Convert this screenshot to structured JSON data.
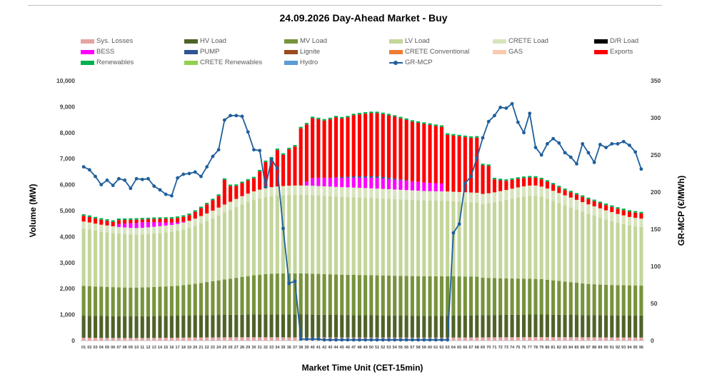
{
  "chart_data": {
    "type": "bar",
    "title": "24.09.2026  Day-Ahead Market - Buy",
    "xlabel": "Market Time Unit (CET-15min)",
    "ylabel": "Volume (MW)",
    "y2label": "GR-MCP (€/MWh)",
    "ylim": [
      0,
      10000
    ],
    "y2lim": [
      0,
      350
    ],
    "y_ticks": [
      "0",
      "1,000",
      "2,000",
      "3,000",
      "4,000",
      "5,000",
      "6,000",
      "7,000",
      "8,000",
      "9,000",
      "10,000"
    ],
    "y2_ticks": [
      "0",
      "50",
      "100",
      "150",
      "200",
      "250",
      "300",
      "350"
    ],
    "categories": [
      "01",
      "02",
      "03",
      "04",
      "05",
      "06",
      "07",
      "08",
      "09",
      "10",
      "11",
      "12",
      "13",
      "14",
      "15",
      "16",
      "17",
      "18",
      "19",
      "20",
      "21",
      "22",
      "23",
      "24",
      "25",
      "26",
      "27",
      "28",
      "29",
      "30",
      "31",
      "32",
      "33",
      "34",
      "35",
      "36",
      "37",
      "38",
      "39",
      "40",
      "41",
      "42",
      "43",
      "44",
      "45",
      "46",
      "47",
      "48",
      "49",
      "50",
      "51",
      "52",
      "53",
      "54",
      "55",
      "56",
      "57",
      "58",
      "59",
      "60",
      "61",
      "62",
      "63",
      "64",
      "65",
      "66",
      "67",
      "68",
      "69",
      "70",
      "71",
      "72",
      "73",
      "74",
      "75",
      "76",
      "77",
      "78",
      "79",
      "80",
      "81",
      "82",
      "83",
      "84",
      "85",
      "86",
      "87",
      "88",
      "89",
      "90",
      "91",
      "92",
      "93",
      "94",
      "95",
      "96"
    ],
    "legend": [
      {
        "name": "Sys. Losses",
        "color": "#e6a3a3"
      },
      {
        "name": "HV Load",
        "color": "#4f6228"
      },
      {
        "name": "MV Load",
        "color": "#77933c"
      },
      {
        "name": "LV Load",
        "color": "#c3d69b"
      },
      {
        "name": "CRETE Load",
        "color": "#d7e4bd"
      },
      {
        "name": "D/R Load",
        "color": "#000000"
      },
      {
        "name": "BESS",
        "color": "#ff00ff"
      },
      {
        "name": "PUMP",
        "color": "#2f5597"
      },
      {
        "name": "Lignite",
        "color": "#9c4a1e"
      },
      {
        "name": "CRETE Conventional",
        "color": "#ed7d31"
      },
      {
        "name": "GAS",
        "color": "#f8cbad"
      },
      {
        "name": "Exports",
        "color": "#ff0000"
      },
      {
        "name": "Renewables",
        "color": "#00b050"
      },
      {
        "name": "CRETE Renewables",
        "color": "#92d050"
      },
      {
        "name": "Hydro",
        "color": "#5b9bd5"
      },
      {
        "name": "GR-MCP",
        "color": "#1f5f9b",
        "kind": "line"
      }
    ],
    "series": [
      {
        "name": "Sys. Losses",
        "color": "#e6a3a3",
        "values": [
          110,
          108,
          106,
          104,
          103,
          102,
          101,
          100,
          100,
          100,
          101,
          102,
          104,
          106,
          108,
          110,
          112,
          115,
          118,
          120,
          122,
          123,
          124,
          125,
          125,
          126,
          127,
          127,
          128,
          128,
          128,
          128,
          128,
          127,
          126,
          125,
          124,
          123,
          122,
          121,
          120,
          120,
          119,
          119,
          118,
          118,
          118,
          117,
          117,
          117,
          117,
          116,
          116,
          116,
          115,
          115,
          115,
          115,
          115,
          115,
          115,
          116,
          117,
          118,
          119,
          120,
          121,
          122,
          124,
          125,
          126,
          127,
          128,
          129,
          130,
          131,
          132,
          133,
          133,
          133,
          132,
          131,
          130,
          129,
          128,
          127,
          126,
          125,
          124,
          123,
          122,
          121,
          120,
          119,
          118,
          117
        ]
      },
      {
        "name": "HV Load",
        "color": "#4f6228",
        "values": [
          850,
          848,
          846,
          844,
          842,
          840,
          838,
          836,
          835,
          835,
          836,
          838,
          840,
          842,
          844,
          846,
          848,
          850,
          852,
          854,
          856,
          858,
          860,
          862,
          864,
          866,
          868,
          870,
          872,
          874,
          876,
          878,
          880,
          882,
          882,
          882,
          882,
          880,
          880,
          878,
          876,
          874,
          872,
          870,
          868,
          866,
          864,
          862,
          860,
          858,
          856,
          854,
          852,
          850,
          848,
          846,
          844,
          842,
          840,
          840,
          840,
          840,
          842,
          844,
          846,
          848,
          850,
          852,
          854,
          856,
          858,
          860,
          862,
          864,
          866,
          868,
          870,
          870,
          870,
          868,
          866,
          864,
          862,
          860,
          858,
          856,
          854,
          852,
          850,
          850,
          850,
          850,
          850,
          850,
          850,
          850
        ]
      },
      {
        "name": "MV Load",
        "color": "#77933c",
        "values": [
          1150,
          1140,
          1130,
          1125,
          1120,
          1115,
          1110,
          1108,
          1105,
          1105,
          1108,
          1112,
          1118,
          1125,
          1132,
          1140,
          1150,
          1165,
          1185,
          1210,
          1240,
          1270,
          1300,
          1330,
          1360,
          1390,
          1420,
          1450,
          1480,
          1510,
          1530,
          1550,
          1560,
          1570,
          1575,
          1578,
          1580,
          1580,
          1578,
          1575,
          1570,
          1565,
          1560,
          1555,
          1550,
          1548,
          1546,
          1544,
          1542,
          1540,
          1538,
          1536,
          1534,
          1530,
          1528,
          1526,
          1524,
          1522,
          1520,
          1520,
          1520,
          1520,
          1515,
          1510,
          1505,
          1500,
          1495,
          1490,
          1440,
          1430,
          1420,
          1410,
          1400,
          1395,
          1390,
          1385,
          1380,
          1370,
          1360,
          1340,
          1320,
          1300,
          1280,
          1260,
          1240,
          1220,
          1200,
          1190,
          1180,
          1170,
          1165,
          1160,
          1160,
          1155,
          1155,
          1150
        ]
      },
      {
        "name": "LV Load",
        "color": "#c3d69b",
        "values": [
          2200,
          2180,
          2150,
          2120,
          2100,
          2080,
          2060,
          2050,
          2040,
          2035,
          2040,
          2050,
          2060,
          2070,
          2080,
          2090,
          2110,
          2140,
          2180,
          2230,
          2290,
          2350,
          2420,
          2500,
          2580,
          2650,
          2720,
          2790,
          2850,
          2900,
          2940,
          2970,
          2990,
          3000,
          3010,
          3015,
          3018,
          3020,
          3020,
          3015,
          3010,
          3005,
          3000,
          2995,
          2990,
          2985,
          2980,
          2975,
          2970,
          2965,
          2960,
          2955,
          2950,
          2945,
          2940,
          2935,
          2930,
          2925,
          2920,
          2915,
          2910,
          2905,
          2900,
          2890,
          2880,
          2870,
          2860,
          2850,
          2850,
          2880,
          2920,
          2970,
          3020,
          3070,
          3120,
          3160,
          3190,
          3200,
          3170,
          3120,
          3060,
          3000,
          2940,
          2880,
          2820,
          2760,
          2700,
          2640,
          2580,
          2520,
          2460,
          2400,
          2350,
          2300,
          2270,
          2250
        ]
      },
      {
        "name": "CRETE Load",
        "color": "#d7e4bd",
        "values": [
          270,
          270,
          268,
          266,
          264,
          262,
          260,
          258,
          256,
          255,
          255,
          256,
          258,
          260,
          262,
          265,
          268,
          272,
          276,
          280,
          285,
          290,
          295,
          300,
          305,
          310,
          315,
          320,
          325,
          330,
          335,
          340,
          345,
          350,
          355,
          360,
          362,
          364,
          366,
          368,
          370,
          372,
          374,
          376,
          378,
          380,
          380,
          380,
          380,
          380,
          378,
          376,
          374,
          372,
          370,
          368,
          366,
          364,
          362,
          360,
          360,
          362,
          364,
          366,
          368,
          370,
          372,
          374,
          376,
          378,
          380,
          382,
          384,
          386,
          388,
          390,
          392,
          394,
          392,
          390,
          386,
          382,
          378,
          374,
          370,
          366,
          362,
          358,
          354,
          350,
          346,
          342,
          338,
          334,
          330,
          326
        ]
      },
      {
        "name": "BESS",
        "color": "#ff00ff",
        "values": [
          0,
          0,
          0,
          0,
          0,
          0,
          120,
          150,
          180,
          200,
          220,
          200,
          180,
          150,
          120,
          90,
          60,
          30,
          0,
          0,
          0,
          0,
          0,
          0,
          0,
          0,
          0,
          0,
          0,
          0,
          0,
          0,
          0,
          0,
          0,
          0,
          0,
          0,
          150,
          300,
          320,
          330,
          340,
          350,
          360,
          370,
          380,
          390,
          400,
          410,
          410,
          400,
          390,
          380,
          370,
          360,
          350,
          340,
          330,
          320,
          310,
          300,
          0,
          0,
          0,
          0,
          0,
          0,
          0,
          0,
          0,
          0,
          0,
          0,
          0,
          0,
          0,
          0,
          0,
          0,
          0,
          0,
          0,
          0,
          0,
          0,
          0,
          0,
          0,
          0,
          0,
          0,
          0,
          0,
          0,
          0
        ]
      },
      {
        "name": "PUMP",
        "color": "#2f5597",
        "values": [
          0,
          0,
          0,
          0,
          0,
          0,
          0,
          0,
          0,
          0,
          0,
          0,
          0,
          0,
          0,
          0,
          0,
          0,
          0,
          0,
          0,
          0,
          0,
          0,
          0,
          0,
          0,
          0,
          0,
          0,
          0,
          0,
          0,
          0,
          0,
          0,
          0,
          0,
          0,
          0,
          0,
          0,
          0,
          20,
          30,
          40,
          50,
          55,
          60,
          60,
          60,
          55,
          50,
          40,
          30,
          20,
          0,
          0,
          0,
          0,
          0,
          0,
          0,
          0,
          0,
          0,
          0,
          0,
          0,
          0,
          0,
          0,
          0,
          0,
          0,
          0,
          0,
          0,
          0,
          0,
          0,
          0,
          0,
          0,
          0,
          0,
          0,
          0,
          0,
          0,
          0,
          0,
          0,
          0,
          0,
          0
        ]
      },
      {
        "name": "Exports",
        "color": "#ff0000",
        "values": [
          220,
          210,
          200,
          190,
          180,
          170,
          150,
          140,
          130,
          120,
          100,
          110,
          120,
          130,
          140,
          150,
          170,
          190,
          220,
          260,
          300,
          350,
          400,
          450,
          950,
          600,
          500,
          500,
          500,
          500,
          700,
          1000,
          1100,
          1400,
          1200,
          1400,
          1500,
          2200,
          2200,
          2300,
          2250,
          2200,
          2250,
          2300,
          2250,
          2280,
          2350,
          2380,
          2400,
          2420,
          2430,
          2420,
          2400,
          2380,
          2350,
          2320,
          2290,
          2270,
          2250,
          2230,
          2200,
          2180,
          2180,
          2160,
          2140,
          2120,
          2100,
          2120,
          1100,
          1050,
          500,
          420,
          350,
          340,
          330,
          320,
          310,
          300,
          280,
          260,
          240,
          220,
          200,
          200,
          200,
          200,
          200,
          200,
          200,
          200,
          200,
          200,
          200,
          200,
          200,
          200
        ]
      },
      {
        "name": "Renewables",
        "color": "#00b050",
        "values": [
          60,
          60,
          60,
          60,
          60,
          60,
          60,
          60,
          60,
          60,
          60,
          60,
          60,
          60,
          60,
          60,
          60,
          60,
          60,
          60,
          60,
          60,
          60,
          60,
          60,
          60,
          60,
          60,
          60,
          60,
          60,
          60,
          60,
          60,
          60,
          60,
          60,
          60,
          60,
          60,
          60,
          60,
          60,
          60,
          60,
          60,
          60,
          60,
          60,
          60,
          60,
          60,
          60,
          60,
          60,
          60,
          60,
          60,
          60,
          60,
          60,
          60,
          60,
          60,
          60,
          60,
          60,
          60,
          60,
          60,
          60,
          60,
          60,
          60,
          60,
          60,
          60,
          60,
          60,
          60,
          60,
          60,
          60,
          60,
          60,
          60,
          60,
          60,
          60,
          60,
          60,
          60,
          60,
          60,
          60,
          60
        ]
      },
      {
        "name": "GR-MCP",
        "color": "#1f5f9b",
        "kind": "line",
        "values": [
          234,
          230,
          221,
          210,
          216,
          209,
          218,
          216,
          205,
          218,
          217,
          218,
          208,
          203,
          197,
          195,
          219,
          224,
          225,
          227,
          221,
          234,
          248,
          257,
          297,
          303,
          303,
          302,
          281,
          257,
          256,
          207,
          244,
          232,
          151,
          77,
          80,
          2,
          2,
          2,
          2,
          1,
          1,
          1,
          1,
          1,
          1,
          1,
          1,
          1,
          1,
          1,
          1,
          1,
          1,
          1,
          1,
          1,
          1,
          1,
          1,
          1,
          1,
          145,
          157,
          212,
          221,
          246,
          273,
          295,
          303,
          314,
          313,
          319,
          294,
          280,
          306,
          260,
          250,
          265,
          272,
          266,
          253,
          247,
          238,
          265,
          253,
          240,
          264,
          260,
          265,
          265,
          268,
          263,
          254,
          231
        ]
      }
    ]
  }
}
